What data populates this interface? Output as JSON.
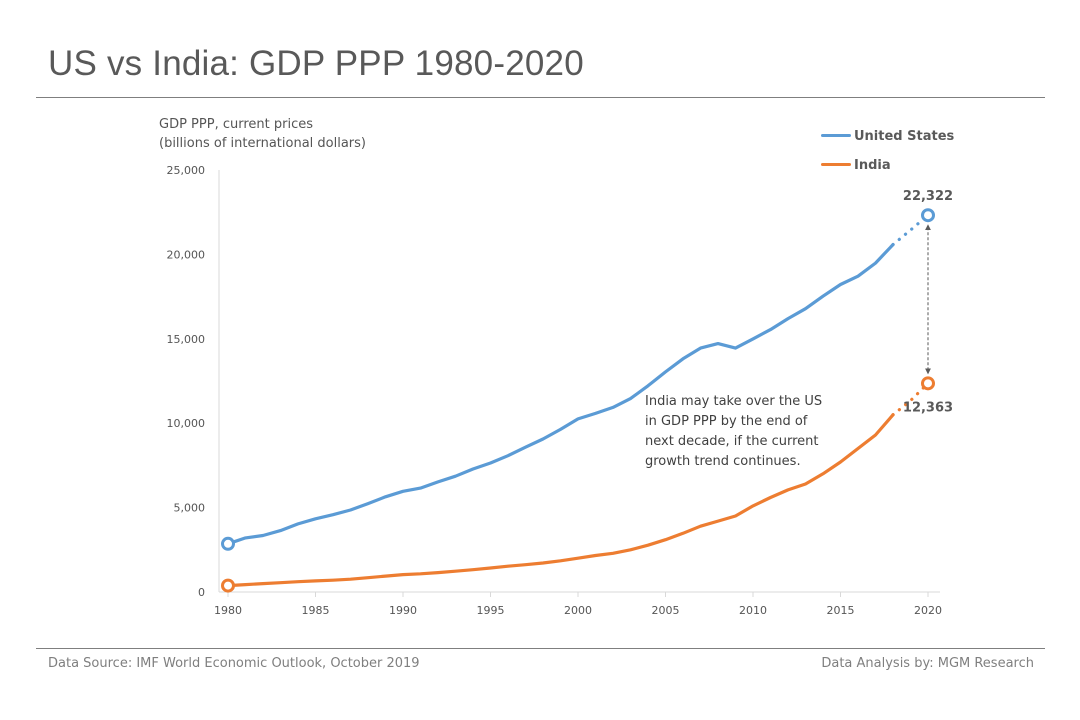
{
  "page": {
    "title": "US vs India: GDP PPP 1980-2020",
    "source": "Data Source:  IMF World Economic Outlook, October 2019",
    "credit": "Data Analysis by: MGM Research"
  },
  "chart_data": {
    "type": "line",
    "title": "US vs India: GDP PPP 1980-2020",
    "ylabel_line1": "GDP PPP, current prices",
    "ylabel_line2": "(billions of international dollars)",
    "xlabel": "",
    "xlim": [
      1980,
      2020
    ],
    "ylim": [
      0,
      25000
    ],
    "xticks": [
      1980,
      1985,
      1990,
      1995,
      2000,
      2005,
      2010,
      2015,
      2020
    ],
    "yticks": [
      0,
      5000,
      10000,
      15000,
      20000,
      25000
    ],
    "ytick_labels": [
      "0",
      "5,000",
      "10,000",
      "15,000",
      "20,000",
      "25,000"
    ],
    "legend_position": "top-right",
    "x": [
      1980,
      1981,
      1982,
      1983,
      1984,
      1985,
      1986,
      1987,
      1988,
      1989,
      1990,
      1991,
      1992,
      1993,
      1994,
      1995,
      1996,
      1997,
      1998,
      1999,
      2000,
      2001,
      2002,
      2003,
      2004,
      2005,
      2006,
      2007,
      2008,
      2009,
      2010,
      2011,
      2012,
      2013,
      2014,
      2015,
      2016,
      2017,
      2018,
      2019,
      2020
    ],
    "projected_from": 2018,
    "series": [
      {
        "name": "United States",
        "color": "#5b9bd5",
        "values": [
          2857,
          3207,
          3345,
          3638,
          4037,
          4339,
          4580,
          4855,
          5236,
          5642,
          5963,
          6158,
          6520,
          6859,
          7287,
          7640,
          8073,
          8578,
          9063,
          9631,
          10252,
          10582,
          10936,
          11458,
          12214,
          13037,
          13815,
          14452,
          14713,
          14449,
          14992,
          15543,
          16197,
          16785,
          17522,
          18219,
          18707,
          19485,
          20580,
          21440,
          22322
        ]
      },
      {
        "name": "India",
        "color": "#ed7d31",
        "values": [
          380,
          440,
          500,
          550,
          610,
          660,
          700,
          760,
          850,
          940,
          1030,
          1080,
          1150,
          1230,
          1320,
          1420,
          1530,
          1620,
          1720,
          1850,
          2000,
          2160,
          2290,
          2500,
          2770,
          3100,
          3480,
          3900,
          4200,
          4500,
          5100,
          5600,
          6050,
          6400,
          7000,
          7700,
          8500,
          9300,
          10500,
          11330,
          12363
        ]
      }
    ],
    "end_labels": {
      "us": "22,322",
      "india": "12,363"
    },
    "annotation": "India may take over the US in GDP PPP by the end of next decade, if the current growth trend continues."
  }
}
